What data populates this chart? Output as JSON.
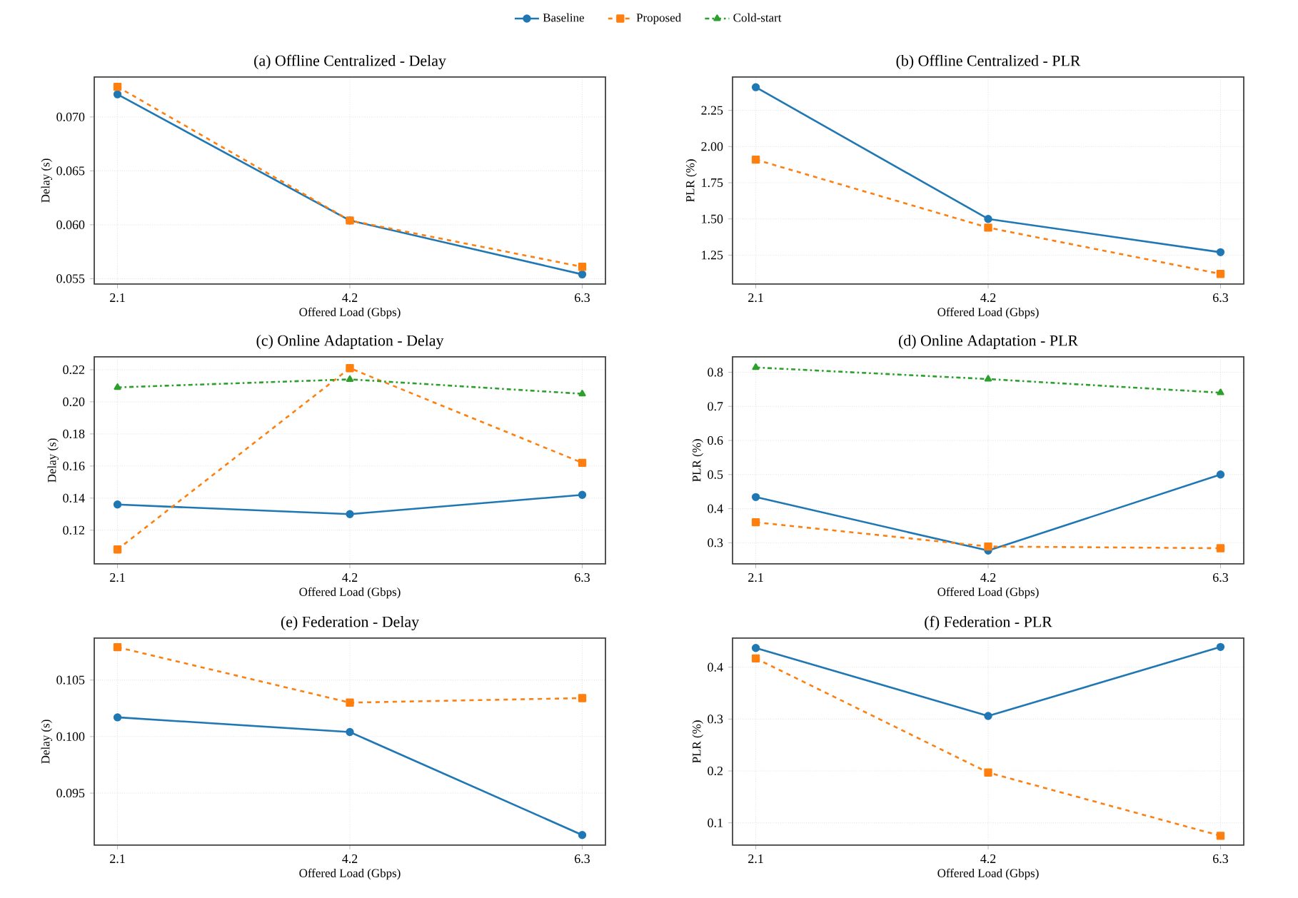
{
  "chart_data": [
    {
      "type": "line",
      "title": "(a) Offline Centralized - Delay",
      "xlabel": "Offered Load (Gbps)",
      "ylabel": "Delay (s)",
      "x": [
        2.1,
        4.2,
        6.3
      ],
      "xlim": [
        1.89,
        6.51
      ],
      "xticks": [
        2.1,
        4.2,
        6.3
      ],
      "ylim": [
        0.0545,
        0.0737
      ],
      "yticks": [
        0.055,
        {
          "value": 0.06,
          "label": "0.060"
        },
        0.065,
        {
          "value": 0.07,
          "label": "0.070"
        }
      ],
      "grid": true,
      "series": [
        {
          "color": "#1f77b4",
          "marker": "circle",
          "line_style": "solid",
          "values": [
            0.0721,
            0.0604,
            0.0554
          ]
        },
        {
          "color": "#ff7f0e",
          "marker": "square",
          "line_style": "dashed",
          "values": [
            0.0728,
            0.0604,
            0.0561
          ]
        }
      ]
    },
    {
      "type": "line",
      "title": "(b) Offline Centralized - PLR",
      "xlabel": "Offered Load (Gbps)",
      "ylabel": "PLR (%)",
      "x": [
        2.1,
        4.2,
        6.3
      ],
      "xlim": [
        1.89,
        6.51
      ],
      "xticks": [
        2.1,
        4.2,
        6.3
      ],
      "ylim": [
        1.05,
        2.48
      ],
      "yticks": [
        1.25,
        {
          "value": 1.5,
          "label": "1.50"
        },
        1.75,
        {
          "value": 2.0,
          "label": "2.00"
        },
        2.25
      ],
      "grid": true,
      "series": [
        {
          "color": "#1f77b4",
          "marker": "circle",
          "line_style": "solid",
          "values": [
            2.41,
            1.5,
            1.27
          ]
        },
        {
          "color": "#ff7f0e",
          "marker": "square",
          "line_style": "dashed",
          "values": [
            1.91,
            1.44,
            1.12
          ]
        }
      ]
    },
    {
      "type": "line",
      "title": "(c) Online Adaptation - Delay",
      "xlabel": "Offered Load (Gbps)",
      "ylabel": "Delay (s)",
      "x": [
        2.1,
        4.2,
        6.3
      ],
      "xlim": [
        1.89,
        6.51
      ],
      "xticks": [
        2.1,
        4.2,
        6.3
      ],
      "ylim": [
        0.099,
        0.228
      ],
      "yticks": [
        0.12,
        0.14,
        0.16,
        0.18,
        {
          "value": 0.2,
          "label": "0.20"
        },
        0.22
      ],
      "grid": true,
      "legend": "top",
      "series": [
        {
          "name": "Baseline",
          "color": "#1f77b4",
          "marker": "circle",
          "line_style": "solid",
          "values": [
            0.136,
            0.13,
            0.142
          ]
        },
        {
          "name": "Proposed",
          "color": "#ff7f0e",
          "marker": "square",
          "line_style": "dashed",
          "values": [
            0.108,
            0.221,
            0.162
          ]
        },
        {
          "name": "Cold-start",
          "color": "#2ca02c",
          "marker": "triangle",
          "line_style": "dashdot",
          "values": [
            0.209,
            0.214,
            0.205
          ]
        }
      ]
    },
    {
      "type": "line",
      "title": "(d) Online Adaptation - PLR",
      "xlabel": "Offered Load (Gbps)",
      "ylabel": "PLR (%)",
      "x": [
        2.1,
        4.2,
        6.3
      ],
      "xlim": [
        1.89,
        6.51
      ],
      "xticks": [
        2.1,
        4.2,
        6.3
      ],
      "ylim": [
        0.238,
        0.845
      ],
      "yticks": [
        0.3,
        0.4,
        0.5,
        0.6,
        0.7,
        0.8
      ],
      "grid": true,
      "series": [
        {
          "color": "#1f77b4",
          "marker": "circle",
          "line_style": "solid",
          "values": [
            0.434,
            0.277,
            0.5
          ]
        },
        {
          "color": "#ff7f0e",
          "marker": "square",
          "line_style": "dashed",
          "values": [
            0.36,
            0.289,
            0.284
          ]
        },
        {
          "color": "#2ca02c",
          "marker": "triangle",
          "line_style": "dashdot",
          "values": [
            0.814,
            0.78,
            0.74
          ]
        }
      ]
    },
    {
      "type": "line",
      "title": "(e) Federation - Delay",
      "xlabel": "Offered Load (Gbps)",
      "ylabel": "Delay (s)",
      "x": [
        2.1,
        4.2,
        6.3
      ],
      "xlim": [
        1.89,
        6.51
      ],
      "xticks": [
        2.1,
        4.2,
        6.3
      ],
      "ylim": [
        0.0904,
        0.1087
      ],
      "yticks": [
        0.095,
        {
          "value": 0.1,
          "label": "0.100"
        },
        0.105
      ],
      "grid": true,
      "series": [
        {
          "color": "#1f77b4",
          "marker": "circle",
          "line_style": "solid",
          "values": [
            0.1017,
            0.1004,
            0.0913
          ]
        },
        {
          "color": "#ff7f0e",
          "marker": "square",
          "line_style": "dashed",
          "values": [
            0.1079,
            0.103,
            0.1034
          ]
        }
      ]
    },
    {
      "type": "line",
      "title": "(f) Federation - PLR",
      "xlabel": "Offered Load (Gbps)",
      "ylabel": "PLR (%)",
      "x": [
        2.1,
        4.2,
        6.3
      ],
      "xlim": [
        1.89,
        6.51
      ],
      "xticks": [
        2.1,
        4.2,
        6.3
      ],
      "ylim": [
        0.057,
        0.456
      ],
      "yticks": [
        0.1,
        0.2,
        0.3,
        0.4
      ],
      "grid": true,
      "series": [
        {
          "color": "#1f77b4",
          "marker": "circle",
          "line_style": "solid",
          "values": [
            0.437,
            0.306,
            0.439
          ]
        },
        {
          "color": "#ff7f0e",
          "marker": "square",
          "line_style": "dashed",
          "values": [
            0.417,
            0.197,
            0.075
          ]
        }
      ]
    }
  ]
}
